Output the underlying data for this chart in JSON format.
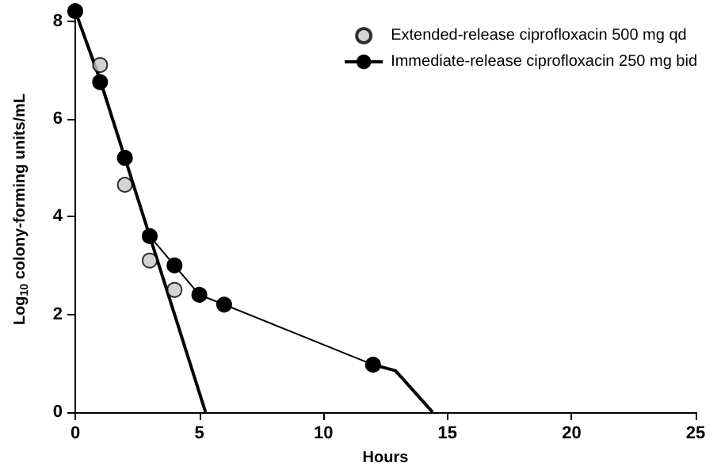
{
  "chart_data": {
    "type": "line",
    "xlabel": "Hours",
    "ylabel": "Log$_{10}$ colony-forming units/mL",
    "xlim": [
      0,
      25
    ],
    "xticks": [
      0,
      5,
      10,
      15,
      20,
      25
    ],
    "ylim": [
      0,
      8.3
    ],
    "yticks": [
      0,
      2,
      4,
      6,
      8
    ],
    "grid": false,
    "legend": "top right",
    "series": [
      {
        "name": "Extended-release ciprofloxacin 500 mg qd",
        "type": "scatter",
        "color": "#000000",
        "marker": "circle",
        "x": [
          1,
          2,
          3,
          4
        ],
        "values": [
          7.1,
          4.65,
          3.1,
          2.5
        ]
      },
      {
        "name": "Immediate-release ciprofloxacin 250 mg bid",
        "type": "line",
        "color": "#000000",
        "marker": "circle",
        "line_style": "solid",
        "x": [
          0,
          1,
          2,
          3,
          4,
          5,
          6,
          12
        ],
        "values": [
          8.2,
          6.75,
          5.2,
          3.6,
          3.0,
          2.4,
          2.2,
          0.97
        ]
      },
      {
        "type": "line",
        "color": "#000000",
        "marker": "none",
        "line_style": "solid",
        "x": [
          0,
          1,
          2,
          3,
          5.25
        ],
        "values": [
          8.2,
          6.8,
          5.2,
          3.6,
          0
        ]
      },
      {
        "type": "line",
        "color": "#000000",
        "marker": "none",
        "line_style": "solid",
        "x": [
          12,
          12.9,
          14.4
        ],
        "values": [
          0.97,
          0.85,
          0
        ]
      }
    ]
  }
}
